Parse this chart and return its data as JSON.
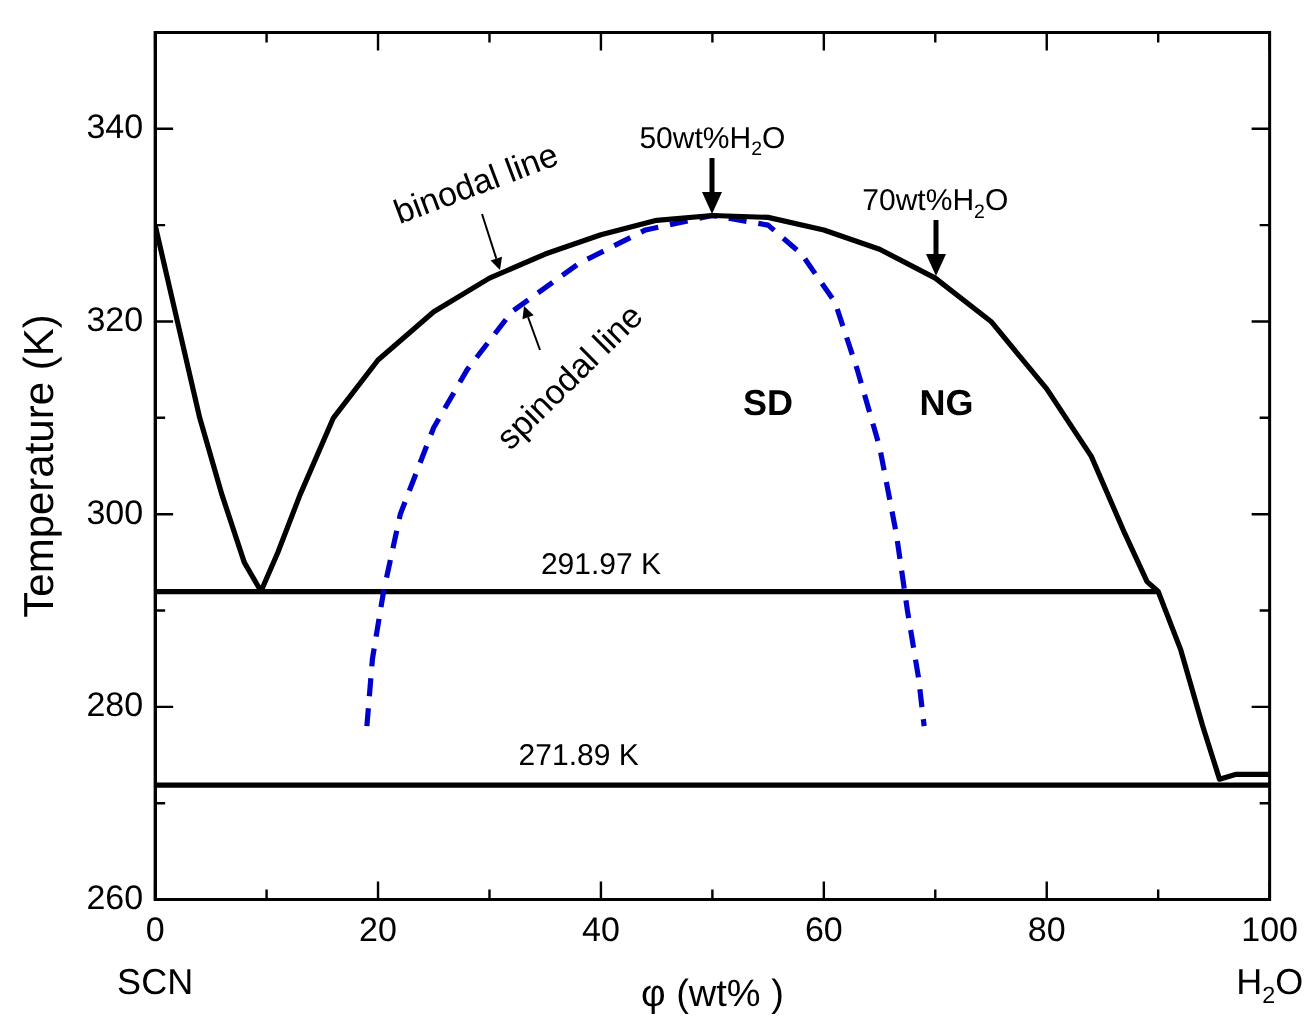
{
  "chart_data": {
    "type": "line",
    "xlabel": "φ (wt% )",
    "ylabel": "Temperature (K)",
    "xlim": [
      0,
      100
    ],
    "ylim": [
      260,
      350
    ],
    "xticks": [
      0,
      {
        "value": 10,
        "label": null
      },
      20,
      {
        "value": 30,
        "label": null
      },
      40,
      {
        "value": 50,
        "label": null
      },
      60,
      {
        "value": 70,
        "label": null
      },
      80,
      {
        "value": 90,
        "label": null
      },
      100
    ],
    "yticks": [
      260,
      {
        "value": 270,
        "label": null
      },
      280,
      {
        "value": 290,
        "label": null
      },
      300,
      {
        "value": 310,
        "label": null
      },
      320,
      {
        "value": 330,
        "label": null
      },
      340
    ],
    "grid": false,
    "legend": false,
    "marker": "none",
    "series": [
      {
        "color": "#000000",
        "x": [
          0,
          2,
          4,
          6,
          8,
          9.5,
          11,
          13,
          16,
          20,
          25,
          30,
          35,
          40,
          45,
          50,
          55,
          60,
          65,
          70,
          75,
          80,
          84,
          87,
          89,
          90,
          92,
          94,
          95.5,
          97,
          100
        ],
        "values": [
          330,
          320,
          310,
          302,
          295,
          292,
          296,
          302,
          310,
          316,
          321,
          324.5,
          327,
          329,
          330.5,
          331,
          330.8,
          329.5,
          327.5,
          324.5,
          320,
          313,
          306,
          298,
          293,
          291.97,
          286,
          278,
          272.5,
          273,
          273
        ]
      },
      {
        "color": "#0000cc",
        "line_style": "dashed",
        "x": [
          19,
          19.5,
          20.5,
          22,
          25,
          28,
          32,
          38,
          44,
          50,
          55,
          58,
          61,
          63,
          65,
          66.5,
          67.5,
          68.5,
          69
        ],
        "values": [
          278,
          285,
          292,
          300,
          309,
          315,
          321,
          326,
          329.5,
          331,
          330,
          327,
          322,
          315,
          307,
          298,
          290,
          283,
          278
        ]
      },
      {
        "color": "#000000",
        "x": [
          0,
          90
        ],
        "values": [
          291.97,
          291.97
        ]
      },
      {
        "color": "#000000",
        "x": [
          0,
          100
        ],
        "values": [
          271.89,
          271.89
        ]
      }
    ],
    "annotations": [
      {
        "text": "binodal line",
        "x": 31,
        "y": 325
      },
      {
        "text": "spinodal line",
        "x": 33,
        "y": 322
      },
      {
        "text": "50wt%H$_{2}$O",
        "x": 50,
        "y": 331
      },
      {
        "text": "70wt%H$_{2}$O",
        "x": 70,
        "y": 324.5
      },
      "SD",
      "NG",
      {
        "text": "291.97 K",
        "x": 40,
        "y": 291.97
      },
      {
        "text": "271.89 K",
        "x": 38,
        "y": 271.89
      },
      "SCN",
      "H$_{2}$O"
    ]
  }
}
